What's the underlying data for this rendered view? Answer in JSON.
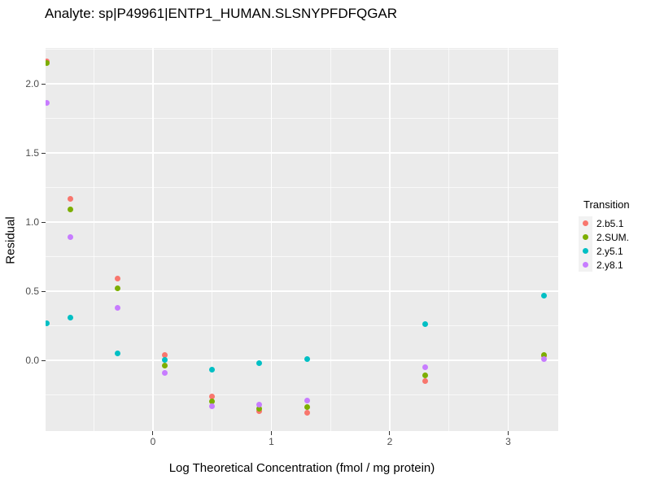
{
  "title": "Analyte: sp|P49961|ENTP1_HUMAN.SLSNYPFDFQGAR",
  "colors": {
    "page_bg": "#FFFFFF",
    "panel_bg": "#EBEBEB",
    "grid": "#FFFFFF",
    "tick_label": "#4D4D4D",
    "tick_mark": "#333333",
    "legend_key_bg": "#F2F2F2",
    "text": "#000000"
  },
  "chart_data": {
    "type": "scatter",
    "title": "Analyte: sp|P49961|ENTP1_HUMAN.SLSNYPFDFQGAR",
    "xlabel": "Log Theoretical Concentration (fmol / mg protein)",
    "ylabel": "Residual",
    "xlim": [
      -0.907,
      3.423
    ],
    "ylim": [
      -0.512,
      2.259
    ],
    "grid": true,
    "x_major_ticks": [
      0,
      1,
      2,
      3
    ],
    "x_tick_labels": [
      "0",
      "1",
      "2",
      "3"
    ],
    "x_minor_ticks": [
      -0.5,
      0.5,
      1.5,
      2.5
    ],
    "y_major_ticks": [
      0.0,
      0.5,
      1.0,
      1.5,
      2.0
    ],
    "y_tick_labels": [
      "0.0",
      "0.5",
      "1.0",
      "1.5",
      "2.0"
    ],
    "y_minor_ticks": [
      -0.25,
      0.25,
      0.75,
      1.25,
      1.75,
      2.25
    ],
    "legend_title": "Transition",
    "legend_position": "right",
    "series": [
      {
        "name": "2.b5.1",
        "color": "#F8766D",
        "points": [
          [
            -0.9,
            2.16
          ],
          [
            -0.7,
            1.17
          ],
          [
            -0.3,
            0.59
          ],
          [
            0.1,
            0.04
          ],
          [
            0.5,
            -0.26
          ],
          [
            0.9,
            -0.37
          ],
          [
            1.3,
            -0.38
          ],
          [
            2.3,
            -0.15
          ],
          [
            3.3,
            0.03
          ]
        ]
      },
      {
        "name": "2.SUM.",
        "color": "#7CAE00",
        "points": [
          [
            -0.9,
            2.15
          ],
          [
            -0.7,
            1.09
          ],
          [
            -0.3,
            0.52
          ],
          [
            0.1,
            -0.04
          ],
          [
            0.5,
            -0.3
          ],
          [
            0.9,
            -0.35
          ],
          [
            1.3,
            -0.34
          ],
          [
            2.3,
            -0.11
          ],
          [
            3.3,
            0.04
          ]
        ]
      },
      {
        "name": "2.y5.1",
        "color": "#00BFC4",
        "points": [
          [
            -0.9,
            0.27
          ],
          [
            -0.7,
            0.31
          ],
          [
            -0.3,
            0.05
          ],
          [
            0.1,
            0.0
          ],
          [
            0.5,
            -0.07
          ],
          [
            0.9,
            -0.02
          ],
          [
            1.3,
            0.01
          ],
          [
            2.3,
            0.26
          ],
          [
            3.3,
            0.47
          ]
        ]
      },
      {
        "name": "2.y8.1",
        "color": "#C77CFF",
        "points": [
          [
            -0.9,
            1.86
          ],
          [
            -0.7,
            0.89
          ],
          [
            -0.3,
            0.38
          ],
          [
            0.1,
            -0.09
          ],
          [
            0.5,
            -0.33
          ],
          [
            0.9,
            -0.32
          ],
          [
            1.3,
            -0.29
          ],
          [
            2.3,
            -0.05
          ],
          [
            3.3,
            0.01
          ]
        ]
      }
    ]
  }
}
